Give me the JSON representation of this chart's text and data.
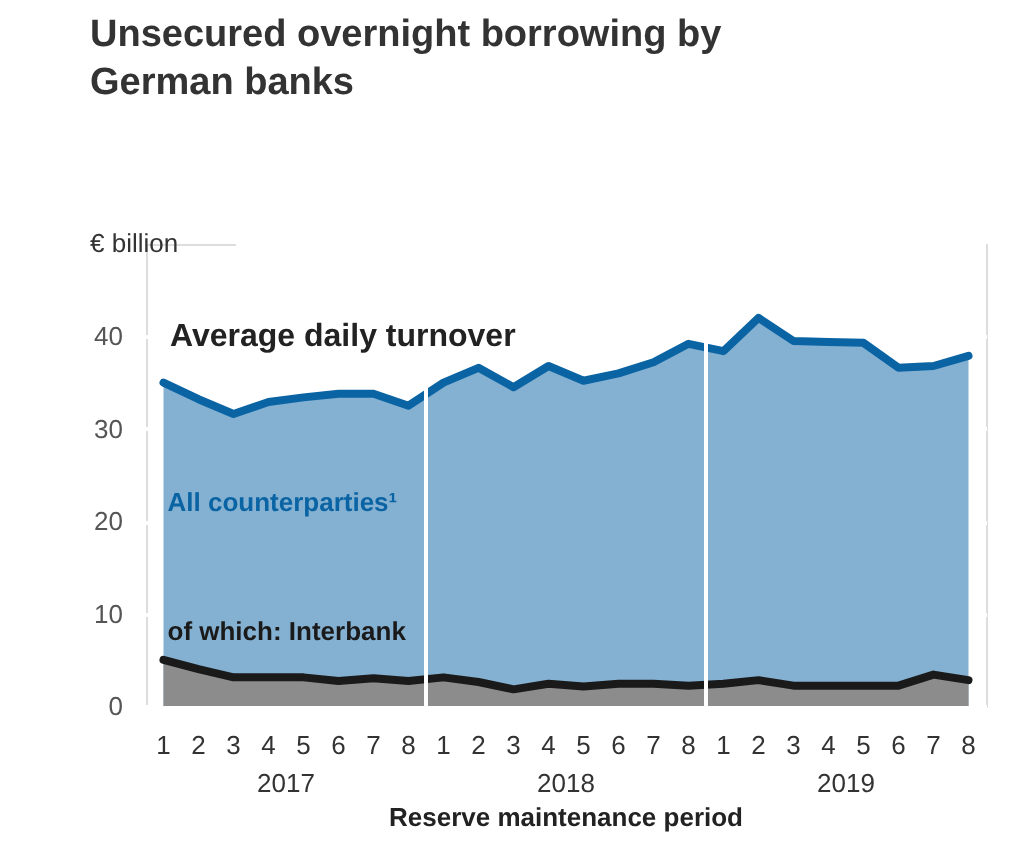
{
  "chart_data": {
    "type": "area",
    "title": "Unsecured overnight borrowing by German banks",
    "ylabel": "€ billion",
    "xlabel": "Reserve maintenance period",
    "categories": [
      "1",
      "2",
      "3",
      "4",
      "5",
      "6",
      "7",
      "8",
      "1",
      "2",
      "3",
      "4",
      "5",
      "6",
      "7",
      "8",
      "1",
      "2",
      "3",
      "4",
      "5",
      "6",
      "7",
      "8"
    ],
    "series": [
      {
        "name": "All counterparties¹",
        "color": "#0a64a4",
        "values": [
          35.0,
          33.2,
          31.6,
          32.9,
          33.4,
          33.8,
          33.8,
          32.5,
          35.0,
          36.6,
          34.5,
          36.8,
          35.2,
          36.0,
          37.2,
          39.2,
          38.4,
          42.0,
          39.5,
          39.4,
          39.3,
          36.6,
          36.8,
          37.9
        ]
      },
      {
        "name": "of which: Interbank",
        "color": "#1a1a1a",
        "values": [
          5.0,
          4.0,
          3.1,
          3.1,
          3.1,
          2.7,
          3.0,
          2.7,
          3.1,
          2.6,
          1.8,
          2.4,
          2.1,
          2.4,
          2.4,
          2.2,
          2.4,
          2.8,
          2.2,
          2.2,
          2.2,
          2.2,
          3.4,
          2.8
        ]
      }
    ],
    "annotations": [
      "Average daily turnover",
      "2017",
      "2018",
      "2019"
    ],
    "ylim": [
      0,
      50
    ],
    "yticks": [
      0,
      10,
      20,
      30,
      40
    ],
    "grid": "y",
    "legend": false
  }
}
